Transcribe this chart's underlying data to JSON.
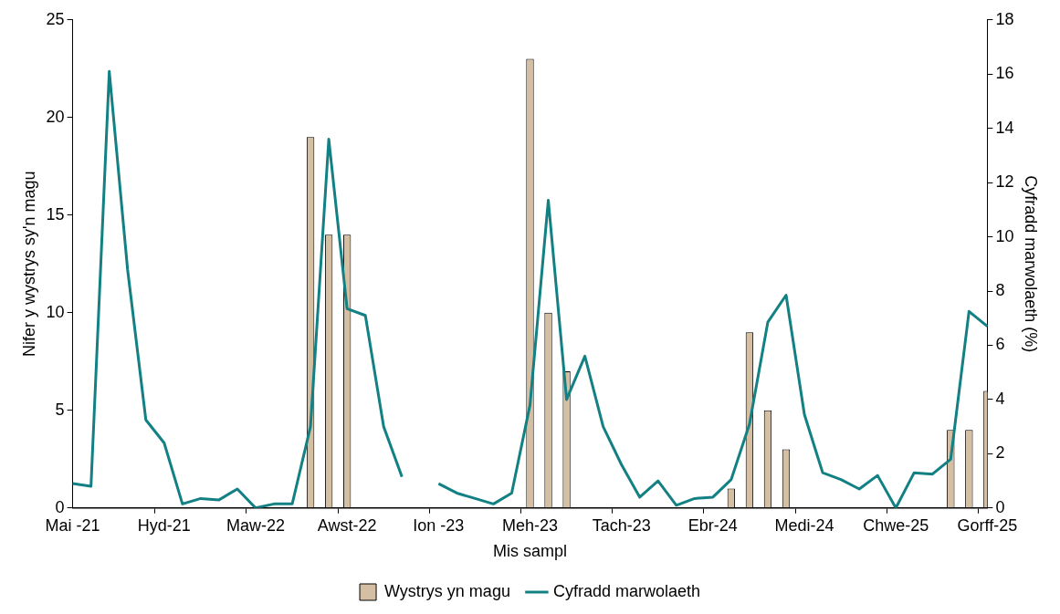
{
  "chart_data": {
    "type": "bar",
    "xlabel": "Mis sampl",
    "ylabel": "Nifer y wystrys sy'n magu",
    "y2label": "Cyfradd marwolaeth (%)",
    "categories": [
      "Mai -21",
      null,
      null,
      null,
      null,
      "Hyd-21",
      null,
      null,
      null,
      null,
      "Maw-22",
      null,
      null,
      null,
      null,
      "Awst-22",
      null,
      null,
      null,
      null,
      "Ion -23",
      null,
      null,
      null,
      null,
      "Meh-23",
      null,
      null,
      null,
      null,
      "Tach-23",
      null,
      null,
      null,
      null,
      "Ebr-24",
      null,
      null,
      null,
      null,
      "Medi-24",
      null,
      null,
      null,
      null,
      "Chwe-25",
      null,
      null,
      null,
      null,
      "Gorff-25"
    ],
    "ylim": [
      0,
      25
    ],
    "yticks": [
      0,
      5,
      10,
      15,
      20,
      25
    ],
    "y2lim": [
      0,
      18
    ],
    "y2ticks": [
      0,
      2,
      4,
      6,
      8,
      10,
      12,
      14,
      16,
      18
    ],
    "legend": "bottom",
    "series": [
      {
        "name": "Wystrys yn magu",
        "color": "#d5bfa3",
        "values": [
          null,
          null,
          null,
          null,
          null,
          null,
          null,
          null,
          null,
          null,
          null,
          null,
          null,
          19,
          14,
          14,
          null,
          null,
          null,
          null,
          null,
          null,
          null,
          null,
          null,
          23,
          10,
          7,
          null,
          null,
          null,
          null,
          null,
          null,
          null,
          null,
          1,
          9,
          5,
          3,
          null,
          null,
          null,
          null,
          null,
          null,
          null,
          null,
          4,
          4,
          6
        ]
      },
      {
        "name": "Cyfradd marwolaeth",
        "type": "line",
        "axis": "y2",
        "color": "#138084",
        "values": [
          0.9,
          0.8,
          16.1,
          8.8,
          3.25,
          2.4,
          0.15,
          0.35,
          0.3,
          0.7,
          0,
          0.15,
          0.15,
          3.0,
          13.6,
          7.35,
          7.1,
          3.0,
          1.15,
          null,
          0.9,
          0.55,
          0.35,
          0.15,
          0.55,
          3.8,
          11.35,
          4.0,
          5.6,
          3.0,
          1.6,
          0.4,
          1.0,
          0.1,
          0.35,
          0.4,
          1.05,
          3.1,
          6.85,
          7.85,
          3.45,
          1.3,
          1.05,
          0.7,
          1.2,
          0,
          1.3,
          1.25,
          1.8,
          7.25,
          6.7
        ]
      }
    ]
  }
}
